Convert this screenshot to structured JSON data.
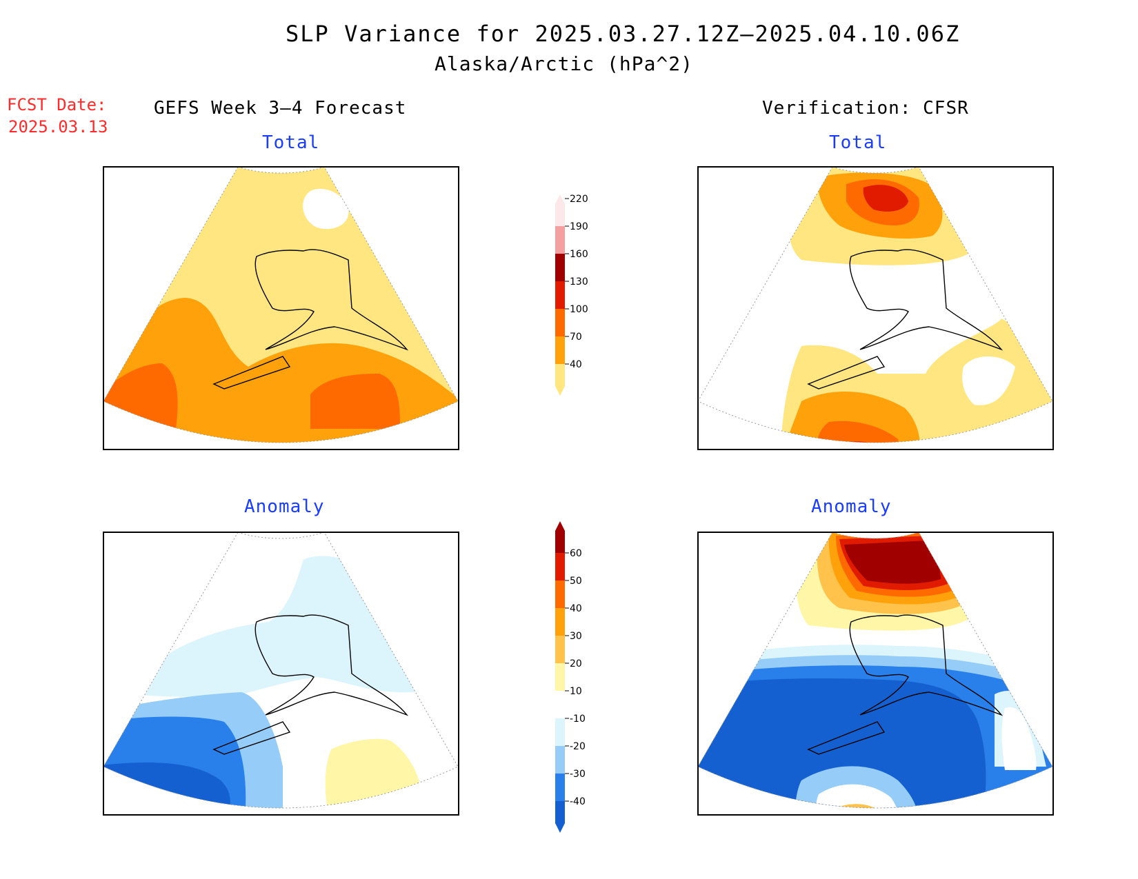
{
  "title": "SLP Variance for 2025.03.27.12Z–2025.04.10.06Z",
  "subtitle": "Alaska/Arctic (hPa^2)",
  "fcst_date_label": "FCST Date:",
  "fcst_date_value": "2025.03.13",
  "left_column_title": "GEFS Week 3–4 Forecast",
  "right_column_title": "Verification: CFSR",
  "panels": {
    "forecast_total": {
      "title": "Total"
    },
    "verification_total": {
      "title": "Total"
    },
    "forecast_anomaly": {
      "title": "Anomaly"
    },
    "verification_anomaly": {
      "title": "Anomaly"
    }
  },
  "colorbars": {
    "total": {
      "labels": [
        "40",
        "70",
        "100",
        "130",
        "160",
        "190",
        "220"
      ],
      "colors": [
        "#ffe680",
        "#ffa10a",
        "#ff6a00",
        "#e01b00",
        "#a00000",
        "#f5a0a0",
        "#fce8e8"
      ]
    },
    "anomaly": {
      "labels": [
        "-40",
        "-30",
        "-20",
        "-10",
        "10",
        "20",
        "30",
        "40",
        "50",
        "60"
      ],
      "colors": [
        "#1560d0",
        "#2a80ea",
        "#96ccf8",
        "#dcf4fb",
        "#ffffff",
        "#fff6a8",
        "#ffc24a",
        "#ffa10a",
        "#ff6a00",
        "#e01b00",
        "#a00000"
      ]
    }
  },
  "map_colors": {
    "total_40": "#ffe680",
    "total_70": "#ffa10a",
    "total_100": "#ff6a00",
    "total_130": "#e01b00",
    "anom_neg10": "#dcf4fb",
    "anom_neg20": "#96ccf8",
    "anom_neg30": "#2a80ea",
    "anom_neg40": "#1560d0",
    "anom_pos10": "#fff6a8",
    "anom_pos20": "#ffc24a",
    "anom_pos30": "#ffa10a",
    "anom_pos40": "#ff6a00",
    "anom_pos50": "#e01b00",
    "anom_pos60": "#a00000"
  }
}
